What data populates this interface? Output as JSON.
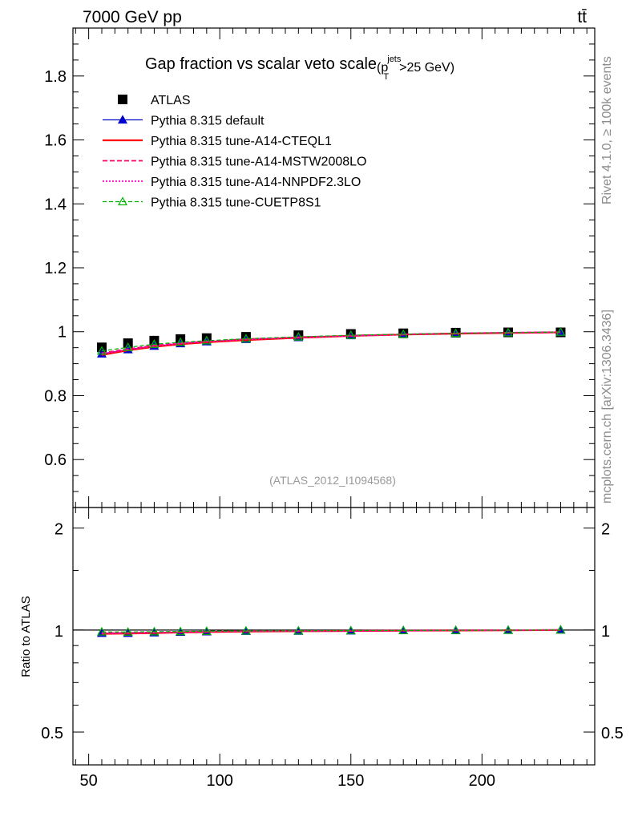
{
  "header": {
    "energy_label": "7000 GeV pp",
    "process_label": "tt̄"
  },
  "side_labels": {
    "rivet": "Rivet 4.1.0, ≥ 100k events",
    "mcplots": "mcplots.cern.ch [arXiv:1306.3436]"
  },
  "colors": {
    "atlas": "#000000",
    "default": "#0000cc",
    "cteql1": "#ff0000",
    "mstw": "#ff0066",
    "nnpdf": "#ff00cc",
    "cuetp8s1": "#00b300",
    "watermark": "#999999"
  },
  "chart_data": [
    {
      "type": "line",
      "title": "Gap fraction vs scalar veto scale",
      "title_suffix": {
        "p": "(p",
        "sup": "jets",
        "sub": "T",
        "tail": ">25 GeV)"
      },
      "watermark": "(ATLAS_2012_I1094568)",
      "xlabel": "",
      "ylabel": "",
      "xlim": [
        44,
        243
      ],
      "ylim": [
        0.45,
        1.95
      ],
      "yticks": [
        0.6,
        0.8,
        1.0,
        1.2,
        1.4,
        1.6,
        1.8
      ],
      "ytick_labels": [
        "0.6",
        "0.8",
        "1",
        "1.2",
        "1.4",
        "1.6",
        "1.8"
      ],
      "x": [
        55,
        65,
        75,
        85,
        95,
        110,
        130,
        150,
        170,
        190,
        210,
        230
      ],
      "series": [
        {
          "key": "atlas",
          "name": "ATLAS",
          "style": "square",
          "values": [
            0.951,
            0.964,
            0.972,
            0.977,
            0.98,
            0.984,
            0.989,
            0.993,
            0.995,
            0.997,
            0.998,
            0.998
          ]
        },
        {
          "key": "default",
          "name": "Pythia 8.315 default",
          "style": "line-triangle",
          "values": [
            0.931,
            0.944,
            0.955,
            0.963,
            0.969,
            0.976,
            0.982,
            0.988,
            0.992,
            0.995,
            0.997,
            0.999
          ]
        },
        {
          "key": "cteql1",
          "name": "Pythia 8.315 tune-A14-CTEQL1",
          "style": "line",
          "values": [
            0.927,
            0.942,
            0.953,
            0.961,
            0.967,
            0.974,
            0.981,
            0.987,
            0.991,
            0.994,
            0.996,
            0.998
          ]
        },
        {
          "key": "mstw",
          "name": "Pythia 8.315 tune-A14-MSTW2008LO",
          "style": "dashed",
          "values": [
            0.933,
            0.946,
            0.957,
            0.964,
            0.97,
            0.977,
            0.983,
            0.988,
            0.992,
            0.995,
            0.997,
            0.999
          ]
        },
        {
          "key": "nnpdf",
          "name": "Pythia 8.315 tune-A14-NNPDF2.3LO",
          "style": "dotted",
          "values": [
            0.93,
            0.944,
            0.955,
            0.963,
            0.969,
            0.976,
            0.982,
            0.987,
            0.991,
            0.995,
            0.997,
            0.998
          ]
        },
        {
          "key": "cuetp8s1",
          "name": "Pythia 8.315 tune-CUETP8S1",
          "style": "dashed-open-triangle",
          "values": [
            0.94,
            0.951,
            0.961,
            0.967,
            0.972,
            0.978,
            0.984,
            0.989,
            0.992,
            0.995,
            0.997,
            0.999
          ]
        }
      ]
    },
    {
      "type": "line",
      "title": "",
      "xlabel": "",
      "ylabel": "Ratio to ATLAS",
      "xlim": [
        44,
        243
      ],
      "ylim": [
        0.4,
        2.3
      ],
      "yscale": "log",
      "yticks_major": [
        0.5,
        1,
        2
      ],
      "ytick_labels": [
        "0.5",
        "1",
        "2"
      ],
      "xticks": [
        50,
        100,
        150,
        200
      ],
      "xtick_labels": [
        "50",
        "100",
        "150",
        "200"
      ],
      "x": [
        55,
        65,
        75,
        85,
        95,
        110,
        130,
        150,
        170,
        190,
        210,
        230
      ],
      "reference": 1.0,
      "series": [
        {
          "key": "default",
          "name": "Pythia 8.315 default",
          "values": [
            0.979,
            0.979,
            0.982,
            0.986,
            0.989,
            0.992,
            0.993,
            0.995,
            0.997,
            0.998,
            0.999,
            1.001
          ]
        },
        {
          "key": "cteql1",
          "name": "Pythia 8.315 tune-A14-CTEQL1",
          "values": [
            0.975,
            0.977,
            0.98,
            0.984,
            0.987,
            0.99,
            0.992,
            0.994,
            0.996,
            0.997,
            0.998,
            1.0
          ]
        },
        {
          "key": "mstw",
          "name": "Pythia 8.315 tune-A14-MSTW2008LO",
          "values": [
            0.981,
            0.981,
            0.985,
            0.987,
            0.99,
            0.993,
            0.994,
            0.995,
            0.997,
            0.998,
            0.999,
            1.001
          ]
        },
        {
          "key": "nnpdf",
          "name": "Pythia 8.315 tune-A14-NNPDF2.3LO",
          "values": [
            0.978,
            0.979,
            0.982,
            0.986,
            0.989,
            0.992,
            0.993,
            0.994,
            0.996,
            0.998,
            0.999,
            1.0
          ]
        },
        {
          "key": "cuetp8s1",
          "name": "Pythia 8.315 tune-CUETP8S1",
          "values": [
            0.988,
            0.987,
            0.989,
            0.99,
            0.992,
            0.994,
            0.995,
            0.996,
            0.997,
            0.998,
            0.999,
            1.001
          ]
        }
      ]
    }
  ]
}
